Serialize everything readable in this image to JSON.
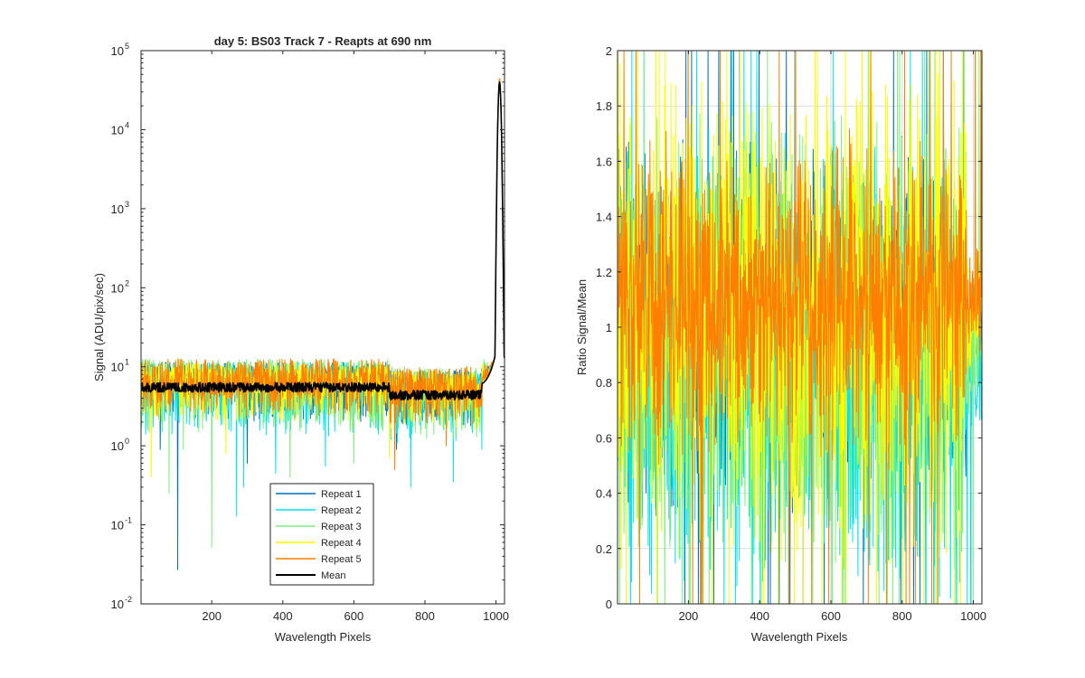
{
  "chart_data": [
    {
      "type": "line",
      "title": "day 5: BS03 Track 7 - Reapts at 690 nm",
      "xlabel": "Wavelength Pixels",
      "ylabel": "Signal (ADU/pix/sec)",
      "xlim": [
        1,
        1024
      ],
      "ylim": [
        0.01,
        100000
      ],
      "yscale": "log",
      "grid": false,
      "legend_location": "bottom-center",
      "x_ticks": [
        200,
        400,
        600,
        800,
        1000
      ],
      "y_ticks": [
        0.01,
        0.1,
        1,
        10,
        100,
        1000,
        10000,
        100000
      ],
      "y_tick_labels": [
        {
          "base": "10",
          "exp": "-2"
        },
        {
          "base": "10",
          "exp": "-1"
        },
        {
          "base": "10",
          "exp": "0"
        },
        {
          "base": "10",
          "exp": "1"
        },
        {
          "base": "10",
          "exp": "2"
        },
        {
          "base": "10",
          "exp": "3"
        },
        {
          "base": "10",
          "exp": "4"
        },
        {
          "base": "10",
          "exp": "5"
        }
      ],
      "series": [
        {
          "name": "Repeat 1",
          "color": "#0072bd",
          "baseline": 6.0,
          "spread_high": 1.9,
          "spread_low": 3.0,
          "dips": [
            [
              104,
              0.027
            ],
            [
              55,
              0.9
            ],
            [
              300,
              0.6
            ],
            [
              720,
              0.9
            ]
          ]
        },
        {
          "name": "Repeat 2",
          "color": "#00e5ee",
          "baseline": 6.0,
          "spread_high": 1.9,
          "spread_low": 4.5,
          "dips": [
            [
              270,
              0.13
            ],
            [
              290,
              0.3
            ],
            [
              380,
              0.45
            ],
            [
              520,
              0.55
            ],
            [
              760,
              0.3
            ],
            [
              880,
              0.35
            ],
            [
              960,
              0.9
            ]
          ]
        },
        {
          "name": "Repeat 3",
          "color": "#7df07d",
          "baseline": 6.0,
          "spread_high": 2.1,
          "spread_low": 4.0,
          "dips": [
            [
              200,
              0.052
            ],
            [
              80,
              0.25
            ],
            [
              120,
              0.9
            ],
            [
              420,
              0.4
            ],
            [
              600,
              0.6
            ]
          ]
        },
        {
          "name": "Repeat 4",
          "color": "#ffff00",
          "baseline": 6.0,
          "spread_high": 1.9,
          "spread_low": 3.0,
          "dips": [
            [
              30,
              0.4
            ],
            [
              240,
              0.8
            ],
            [
              700,
              0.7
            ]
          ]
        },
        {
          "name": "Repeat 5",
          "color": "#ff8000",
          "baseline": 6.0,
          "spread_high": 2.1,
          "spread_low": 2.5,
          "dips": [
            [
              715,
              0.5
            ],
            [
              860,
              1.0
            ]
          ]
        },
        {
          "name": "Mean",
          "color": "#000000",
          "baseline": 5.5,
          "spread_high": 1.15,
          "spread_low": 1.15,
          "dips": []
        }
      ],
      "peak": {
        "x": 1010,
        "value": 40000,
        "shoulder_value": 20
      }
    },
    {
      "type": "line",
      "title": "",
      "xlabel": "Wavelength Pixels",
      "ylabel": "Ratio Signal/Mean",
      "xlim": [
        1,
        1024
      ],
      "ylim": [
        0,
        2
      ],
      "grid": true,
      "x_ticks": [
        200,
        400,
        600,
        800,
        1000
      ],
      "y_ticks": [
        0,
        0.2,
        0.4,
        0.6,
        0.8,
        1,
        1.2,
        1.4,
        1.6,
        1.8,
        2
      ],
      "y_tick_labels": [
        "0",
        "0.2",
        "0.4",
        "0.6",
        "0.8",
        "1",
        "1.2",
        "1.4",
        "1.6",
        "1.8",
        "2"
      ],
      "series": [
        {
          "name": "Repeat 1",
          "color": "#0072bd",
          "center": 1.0,
          "amplitude": 0.45
        },
        {
          "name": "Repeat 2",
          "color": "#00e5ee",
          "center": 0.85,
          "amplitude": 0.55
        },
        {
          "name": "Repeat 3",
          "color": "#7df07d",
          "center": 0.95,
          "amplitude": 0.55
        },
        {
          "name": "Repeat 4",
          "color": "#ffff00",
          "center": 1.05,
          "amplitude": 0.6
        },
        {
          "name": "Repeat 5",
          "color": "#ff8000",
          "center": 1.1,
          "amplitude": 0.4
        }
      ]
    }
  ]
}
